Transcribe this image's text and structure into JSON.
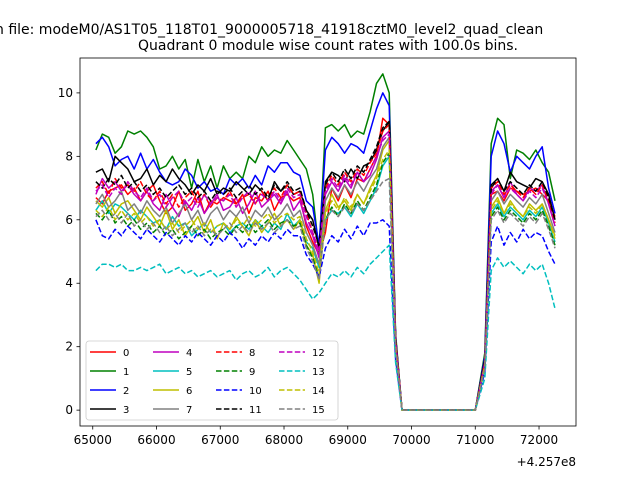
{
  "chart_data": {
    "type": "line",
    "suptitle": "n file: modeM0/AS1T05_118T01_9000005718_41918cztM0_level2_quad_clean",
    "title": "Quadrant 0 module wise count rates with 100.0s bins.",
    "xlabel": "",
    "ylabel": "",
    "x_offset_label": "+4.257e8",
    "xlim": [
      64800,
      72580
    ],
    "ylim": [
      -0.5,
      11.1
    ],
    "xticks": [
      "65000",
      "66000",
      "67000",
      "68000",
      "69000",
      "70000",
      "71000",
      "72000"
    ],
    "yticks": [
      "0",
      "2",
      "4",
      "6",
      "8",
      "10"
    ],
    "grid": false,
    "legend": {
      "placement": "lower-left",
      "columns": 4
    },
    "x": {
      "seg1": [
        65050,
        65150,
        65250,
        65350,
        65450,
        65550,
        65650,
        65750,
        65850,
        65950,
        66050,
        66150,
        66250,
        66350,
        66450,
        66550,
        66650,
        66750,
        66850,
        66950,
        67050,
        67150,
        67250,
        67350,
        67450,
        67550,
        67650,
        67750,
        67850,
        67950,
        68050,
        68150,
        68250,
        68350,
        68450,
        68550,
        68650,
        68750,
        68850,
        68950,
        69050,
        69150,
        69250,
        69350,
        69450,
        69550,
        69650,
        69750,
        69850,
        70000,
        70500,
        71000,
        71150,
        71250,
        71350,
        71450,
        71550,
        71650,
        71750,
        71850,
        71950,
        72050,
        72150,
        72250
      ]
    },
    "series": [
      {
        "name": "0",
        "color": "#ff0000",
        "dash": false,
        "values": [
          6.7,
          6.5,
          6.9,
          7.0,
          7.1,
          6.8,
          7.0,
          6.6,
          6.9,
          7.1,
          6.6,
          6.2,
          6.4,
          6.9,
          6.3,
          6.5,
          6.9,
          6.2,
          6.6,
          6.5,
          6.7,
          6.6,
          6.5,
          6.8,
          6.2,
          6.7,
          6.6,
          6.9,
          6.3,
          6.7,
          6.8,
          6.6,
          6.7,
          5.8,
          5.3,
          4.9,
          5.6,
          7.0,
          6.6,
          7.1,
          6.7,
          7.3,
          7.2,
          7.6,
          8.0,
          9.2,
          9.0,
          2.2,
          0.0,
          0.0,
          0.0,
          0.0,
          1.5,
          6.8,
          6.9,
          6.6,
          7.0,
          6.9,
          6.8,
          6.9,
          7.0,
          6.8,
          6.6,
          6.1
        ]
      },
      {
        "name": "1",
        "color": "#008000",
        "dash": false,
        "values": [
          8.2,
          8.7,
          8.6,
          8.1,
          8.3,
          8.8,
          8.7,
          8.8,
          8.6,
          8.3,
          7.6,
          7.7,
          8.0,
          7.6,
          7.9,
          7.0,
          7.9,
          7.2,
          7.7,
          7.0,
          7.7,
          7.3,
          7.5,
          7.3,
          8.0,
          7.8,
          8.3,
          8.0,
          8.2,
          8.1,
          8.5,
          8.2,
          7.9,
          7.6,
          6.8,
          5.0,
          8.9,
          9.0,
          8.8,
          9.0,
          8.6,
          8.8,
          8.7,
          9.4,
          10.3,
          10.6,
          10.0,
          2.4,
          0.0,
          0.0,
          0.0,
          0.0,
          1.8,
          8.4,
          9.2,
          9.0,
          7.3,
          8.2,
          8.1,
          7.9,
          8.2,
          7.8,
          7.5,
          6.6
        ]
      },
      {
        "name": "2",
        "color": "#0000ff",
        "dash": false,
        "values": [
          8.4,
          8.6,
          8.3,
          7.7,
          7.9,
          8.0,
          7.6,
          8.1,
          7.6,
          7.9,
          7.5,
          7.2,
          7.1,
          7.2,
          7.6,
          7.4,
          7.0,
          7.2,
          6.9,
          7.0,
          6.8,
          7.3,
          7.1,
          7.3,
          7.0,
          7.4,
          7.1,
          7.7,
          7.5,
          7.8,
          7.8,
          7.5,
          7.4,
          6.6,
          6.4,
          5.2,
          8.2,
          8.6,
          8.4,
          8.1,
          8.4,
          8.3,
          8.1,
          8.8,
          9.5,
          10.0,
          9.6,
          2.3,
          0.0,
          0.0,
          0.0,
          0.0,
          1.7,
          8.0,
          8.8,
          8.4,
          7.5,
          8.0,
          7.8,
          7.6,
          8.0,
          8.3,
          7.0,
          6.2
        ]
      },
      {
        "name": "3",
        "color": "#000000",
        "dash": false,
        "values": [
          7.5,
          7.6,
          7.2,
          8.0,
          7.8,
          7.6,
          7.2,
          7.3,
          7.6,
          7.1,
          7.4,
          7.2,
          7.6,
          7.3,
          7.1,
          6.8,
          7.1,
          6.9,
          7.3,
          6.8,
          7.0,
          6.9,
          7.2,
          7.0,
          6.8,
          7.1,
          6.9,
          6.6,
          7.2,
          6.9,
          7.1,
          6.8,
          6.9,
          6.3,
          6.0,
          5.1,
          7.2,
          7.5,
          7.4,
          7.2,
          7.6,
          7.3,
          7.7,
          7.8,
          8.2,
          8.8,
          9.1,
          2.3,
          0.0,
          0.0,
          0.0,
          0.0,
          1.6,
          7.1,
          7.3,
          6.9,
          7.5,
          7.2,
          7.1,
          7.0,
          7.3,
          7.2,
          6.8,
          6.0
        ]
      },
      {
        "name": "4",
        "color": "#bf00bf",
        "dash": false,
        "values": [
          6.8,
          7.3,
          7.0,
          7.2,
          6.9,
          7.1,
          6.8,
          6.6,
          6.9,
          6.5,
          6.3,
          6.8,
          6.4,
          6.1,
          6.6,
          6.3,
          6.7,
          6.2,
          6.5,
          6.8,
          6.3,
          6.4,
          6.7,
          6.2,
          6.5,
          6.9,
          6.4,
          6.6,
          6.8,
          6.5,
          6.9,
          6.3,
          6.6,
          5.9,
          5.5,
          4.8,
          6.8,
          7.2,
          6.9,
          7.3,
          7.0,
          7.5,
          7.2,
          7.4,
          7.9,
          8.6,
          8.8,
          2.1,
          0.0,
          0.0,
          0.0,
          0.0,
          1.5,
          6.9,
          7.1,
          6.7,
          7.2,
          6.8,
          6.6,
          7.0,
          6.9,
          7.1,
          6.5,
          5.8
        ]
      },
      {
        "name": "5",
        "color": "#00bfbf",
        "dash": false,
        "values": [
          6.3,
          6.6,
          6.2,
          6.5,
          6.4,
          6.2,
          6.0,
          6.3,
          6.1,
          5.9,
          6.0,
          5.7,
          6.1,
          5.8,
          5.9,
          5.5,
          5.7,
          5.9,
          5.6,
          5.8,
          5.9,
          5.6,
          5.8,
          5.9,
          5.7,
          6.0,
          5.8,
          5.6,
          5.9,
          5.7,
          6.2,
          5.8,
          6.0,
          5.3,
          5.1,
          4.5,
          6.0,
          6.3,
          6.2,
          6.4,
          6.1,
          6.5,
          6.2,
          6.6,
          7.0,
          7.7,
          8.0,
          1.9,
          0.0,
          0.0,
          0.0,
          0.0,
          1.3,
          6.2,
          6.5,
          6.1,
          6.4,
          6.2,
          6.0,
          6.3,
          6.1,
          6.4,
          5.9,
          5.3
        ]
      },
      {
        "name": "6",
        "color": "#bfbf00",
        "dash": false,
        "values": [
          6.6,
          6.4,
          6.7,
          6.2,
          6.5,
          6.6,
          6.3,
          6.0,
          6.4,
          6.1,
          5.8,
          6.3,
          5.7,
          6.0,
          5.5,
          5.8,
          6.1,
          5.6,
          6.0,
          5.4,
          5.9,
          5.7,
          6.1,
          5.8,
          5.5,
          6.0,
          5.6,
          5.9,
          6.2,
          5.8,
          6.0,
          5.7,
          6.0,
          5.2,
          4.9,
          4.0,
          6.3,
          6.8,
          6.4,
          6.6,
          6.3,
          6.8,
          6.5,
          7.0,
          7.4,
          8.2,
          8.5,
          2.0,
          0.0,
          0.0,
          0.0,
          0.0,
          1.4,
          6.4,
          6.7,
          6.2,
          6.6,
          6.3,
          6.1,
          6.5,
          6.3,
          6.5,
          6.0,
          5.5
        ]
      },
      {
        "name": "7",
        "color": "#808080",
        "dash": false,
        "values": [
          6.5,
          6.8,
          6.4,
          6.6,
          6.9,
          6.3,
          6.5,
          6.2,
          6.6,
          6.3,
          6.1,
          6.4,
          5.9,
          6.2,
          6.5,
          6.0,
          6.3,
          5.8,
          6.2,
          6.4,
          6.0,
          6.3,
          6.1,
          6.4,
          5.9,
          6.3,
          6.1,
          6.4,
          6.0,
          6.2,
          6.5,
          6.1,
          6.3,
          5.6,
          5.2,
          4.6,
          6.6,
          7.0,
          6.7,
          7.1,
          6.8,
          7.2,
          6.9,
          7.3,
          7.6,
          8.3,
          8.6,
          2.1,
          0.0,
          0.0,
          0.0,
          0.0,
          1.4,
          6.6,
          6.9,
          6.5,
          6.8,
          6.6,
          6.4,
          6.7,
          6.5,
          6.8,
          6.2,
          5.6
        ]
      },
      {
        "name": "8",
        "color": "#ff0000",
        "dash": true,
        "values": [
          7.0,
          7.2,
          6.8,
          7.3,
          7.0,
          7.1,
          6.9,
          7.2,
          6.8,
          6.6,
          6.9,
          6.5,
          6.8,
          6.4,
          6.7,
          6.9,
          6.5,
          6.8,
          6.4,
          6.7,
          6.6,
          6.9,
          6.5,
          6.7,
          6.8,
          6.5,
          6.9,
          6.6,
          7.0,
          6.7,
          7.1,
          6.8,
          6.9,
          6.2,
          5.6,
          5.0,
          7.0,
          7.4,
          7.1,
          7.5,
          7.2,
          7.6,
          7.4,
          7.8,
          8.1,
          8.8,
          9.0,
          2.2,
          0.0,
          0.0,
          0.0,
          0.0,
          1.5,
          7.0,
          7.2,
          6.8,
          7.1,
          6.9,
          6.7,
          7.0,
          6.8,
          7.1,
          6.6,
          5.9
        ]
      },
      {
        "name": "9",
        "color": "#008000",
        "dash": true,
        "values": [
          6.2,
          6.0,
          6.3,
          5.9,
          6.1,
          5.8,
          6.0,
          5.7,
          5.9,
          5.6,
          5.8,
          5.5,
          5.7,
          5.4,
          5.6,
          5.8,
          5.5,
          5.7,
          5.4,
          5.6,
          5.7,
          5.5,
          5.8,
          5.6,
          5.9,
          5.6,
          5.8,
          6.0,
          5.7,
          5.9,
          6.0,
          5.8,
          5.9,
          5.2,
          4.8,
          4.2,
          6.0,
          6.4,
          6.1,
          6.5,
          6.2,
          6.6,
          6.3,
          6.7,
          7.1,
          7.8,
          8.1,
          1.9,
          0.0,
          0.0,
          0.0,
          0.0,
          1.3,
          6.1,
          6.4,
          6.0,
          6.3,
          6.1,
          5.9,
          6.2,
          6.0,
          6.3,
          5.8,
          5.2
        ]
      },
      {
        "name": "10",
        "color": "#0000ff",
        "dash": true,
        "values": [
          6.0,
          5.5,
          5.4,
          5.7,
          5.5,
          5.8,
          5.6,
          5.4,
          5.7,
          5.5,
          5.3,
          5.6,
          5.4,
          5.2,
          5.5,
          5.3,
          5.6,
          5.4,
          5.2,
          5.5,
          5.3,
          5.6,
          5.4,
          5.1,
          5.4,
          5.2,
          5.5,
          5.3,
          5.6,
          5.4,
          5.7,
          5.5,
          5.5,
          4.9,
          4.6,
          4.2,
          5.1,
          5.5,
          5.3,
          5.7,
          5.4,
          5.8,
          5.5,
          5.9,
          5.9,
          6.0,
          5.8,
          1.6,
          0.0,
          0.0,
          0.0,
          0.0,
          1.2,
          5.3,
          5.8,
          5.2,
          5.6,
          5.3,
          5.7,
          5.4,
          5.6,
          5.5,
          5.0,
          4.6
        ]
      },
      {
        "name": "11",
        "color": "#000000",
        "dash": true,
        "values": [
          7.2,
          7.0,
          7.3,
          7.1,
          7.4,
          7.0,
          7.2,
          6.9,
          7.1,
          6.8,
          7.0,
          6.7,
          6.9,
          7.1,
          6.8,
          7.0,
          6.7,
          6.9,
          6.6,
          6.9,
          6.8,
          7.0,
          6.7,
          6.9,
          7.1,
          6.8,
          7.0,
          6.7,
          7.1,
          6.9,
          7.2,
          6.9,
          7.0,
          6.3,
          5.8,
          5.2,
          7.1,
          7.5,
          7.2,
          7.6,
          7.3,
          7.7,
          7.5,
          7.9,
          8.3,
          8.9,
          9.1,
          2.3,
          0.0,
          0.0,
          0.0,
          0.0,
          1.6,
          7.0,
          7.3,
          6.9,
          7.2,
          7.0,
          6.8,
          7.1,
          6.9,
          7.2,
          6.7,
          6.0
        ]
      },
      {
        "name": "12",
        "color": "#bf00bf",
        "dash": true,
        "values": [
          6.9,
          7.1,
          6.7,
          7.0,
          6.8,
          7.2,
          6.9,
          6.7,
          7.0,
          6.6,
          6.8,
          6.4,
          6.7,
          6.9,
          6.5,
          6.7,
          6.4,
          6.8,
          6.5,
          6.7,
          6.6,
          6.8,
          6.4,
          6.7,
          6.9,
          6.5,
          6.8,
          6.6,
          6.9,
          6.6,
          7.0,
          6.7,
          6.8,
          6.1,
          5.6,
          5.0,
          6.9,
          7.3,
          7.0,
          7.4,
          7.1,
          7.5,
          7.2,
          7.6,
          8.0,
          8.5,
          8.7,
          2.2,
          0.0,
          0.0,
          0.0,
          0.0,
          1.5,
          6.8,
          7.1,
          6.7,
          7.0,
          6.8,
          6.6,
          6.9,
          6.7,
          7.0,
          6.5,
          5.8
        ]
      },
      {
        "name": "13",
        "color": "#00bfbf",
        "dash": true,
        "values": [
          4.4,
          4.6,
          4.6,
          4.5,
          4.6,
          4.4,
          4.4,
          4.5,
          4.4,
          4.5,
          4.6,
          4.3,
          4.4,
          4.5,
          4.3,
          4.4,
          4.2,
          4.3,
          4.4,
          4.2,
          4.3,
          4.4,
          4.1,
          4.3,
          4.4,
          4.2,
          4.3,
          4.5,
          4.2,
          4.4,
          4.5,
          4.3,
          4.1,
          3.8,
          3.5,
          3.7,
          4.0,
          4.3,
          4.2,
          4.4,
          4.2,
          4.5,
          4.3,
          4.6,
          4.8,
          5.0,
          5.2,
          1.5,
          0.0,
          0.0,
          0.0,
          0.0,
          1.0,
          4.4,
          4.8,
          4.5,
          4.7,
          4.5,
          4.3,
          4.6,
          4.4,
          4.6,
          4.0,
          3.2
        ]
      },
      {
        "name": "14",
        "color": "#bfbf00",
        "dash": true,
        "values": [
          6.3,
          6.1,
          6.4,
          6.0,
          6.3,
          6.0,
          6.2,
          5.9,
          6.1,
          5.8,
          6.0,
          5.7,
          5.9,
          5.6,
          5.8,
          6.0,
          5.7,
          5.9,
          5.6,
          5.8,
          5.9,
          5.7,
          6.0,
          5.8,
          6.1,
          5.8,
          6.0,
          6.2,
          5.9,
          6.1,
          6.2,
          6.0,
          6.1,
          5.4,
          5.0,
          4.3,
          6.2,
          6.6,
          6.3,
          6.7,
          6.4,
          6.8,
          6.5,
          6.9,
          7.3,
          7.9,
          8.2,
          2.0,
          0.0,
          0.0,
          0.0,
          0.0,
          1.4,
          6.3,
          6.6,
          6.2,
          6.5,
          6.3,
          6.1,
          6.4,
          6.2,
          6.5,
          6.0,
          5.4
        ]
      },
      {
        "name": "15",
        "color": "#808080",
        "dash": true,
        "values": [
          6.1,
          6.3,
          6.0,
          6.2,
          5.9,
          6.2,
          5.8,
          6.0,
          5.7,
          5.9,
          5.6,
          5.8,
          5.5,
          5.7,
          5.9,
          5.6,
          5.8,
          5.5,
          5.7,
          5.5,
          5.7,
          5.9,
          5.6,
          5.8,
          5.6,
          5.9,
          5.7,
          5.9,
          5.6,
          5.8,
          6.0,
          5.7,
          5.8,
          5.1,
          4.7,
          4.1,
          6.0,
          6.3,
          6.1,
          6.4,
          6.2,
          6.5,
          6.3,
          6.6,
          6.9,
          7.2,
          7.3,
          1.9,
          0.0,
          0.0,
          0.0,
          0.0,
          1.3,
          6.0,
          6.3,
          5.9,
          6.2,
          6.0,
          5.8,
          6.1,
          5.9,
          6.2,
          5.7,
          5.1
        ]
      }
    ]
  }
}
